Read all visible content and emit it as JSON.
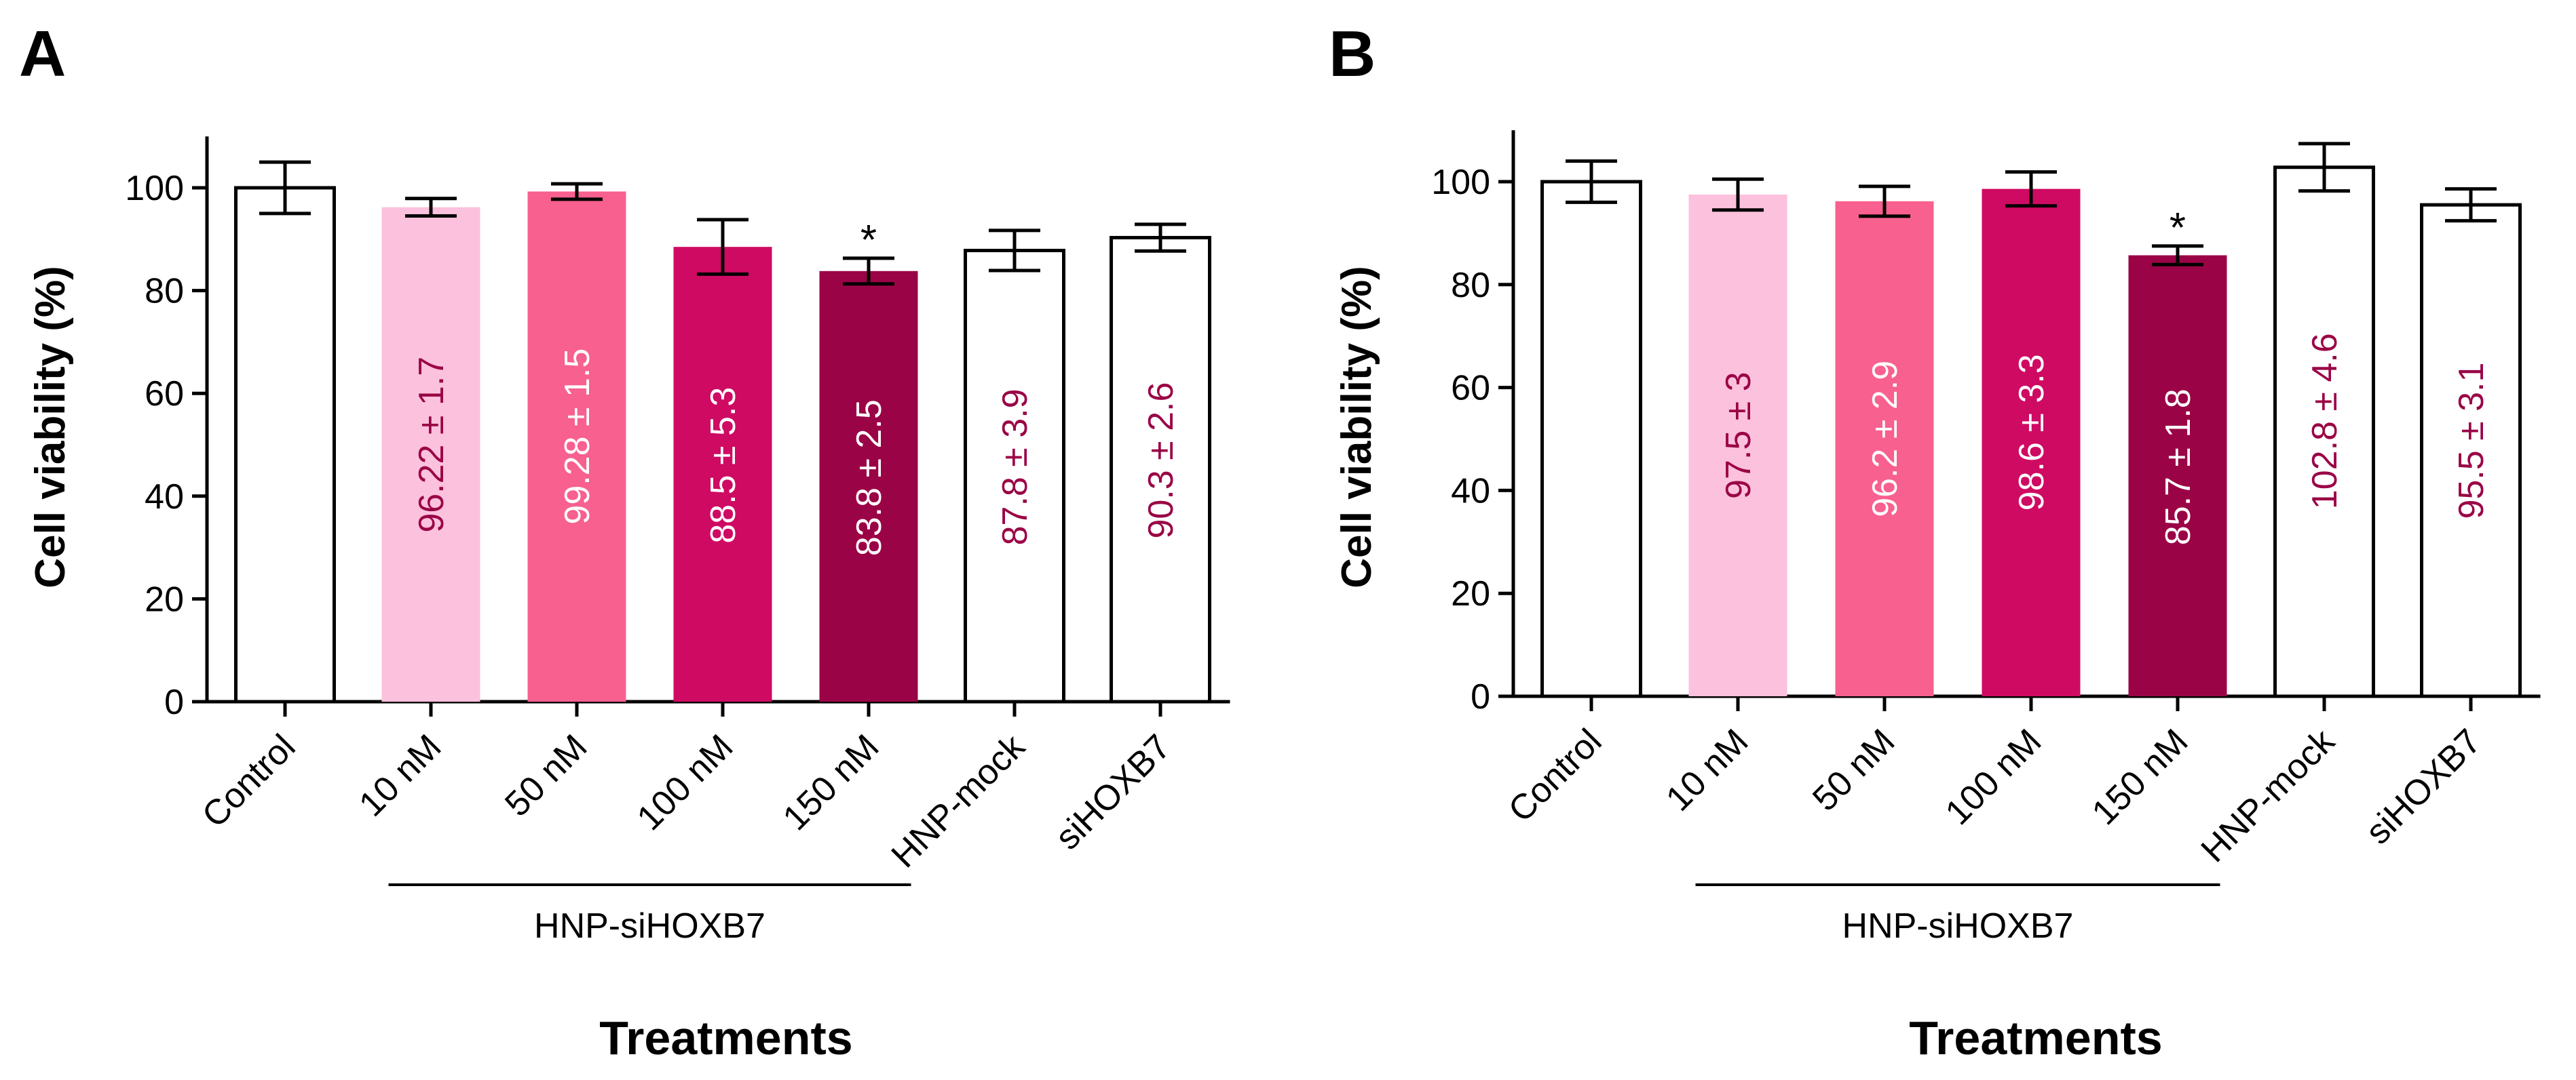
{
  "chart_data": [
    {
      "panel": "A",
      "type": "bar",
      "ylabel": "Cell viability (%)",
      "xlabel": "Treatments",
      "ylim": [
        0,
        110
      ],
      "yticks": [
        0,
        20,
        40,
        60,
        80,
        100
      ],
      "categories": [
        "Control",
        "10 nM",
        "50 nM",
        "100 nM",
        "150 nM",
        "HNP-mock",
        "siHOXB7"
      ],
      "values": [
        100,
        96.22,
        99.28,
        88.5,
        83.8,
        87.8,
        90.3
      ],
      "errors": [
        5,
        1.7,
        1.5,
        5.3,
        2.5,
        3.9,
        2.6
      ],
      "value_labels": [
        "",
        "96.22 ± 1.7",
        "99.28 ± 1.5",
        "88.5 ± 5.3",
        "83.8 ± 2.5",
        "87.8 ± 3.9",
        "90.3 ± 2.6"
      ],
      "significant": [
        false,
        false,
        false,
        false,
        true,
        false,
        false
      ],
      "significance_mark": "*",
      "bar_colors": [
        "#ffffff",
        "#fcc1dc",
        "#f7608f",
        "#cf0a63",
        "#9a0446",
        "#ffffff",
        "#ffffff"
      ],
      "label_colors": [
        "#9a0446",
        "#9a0446",
        "#ffffff",
        "#ffffff",
        "#ffffff",
        "#9a0446",
        "#9a0446"
      ],
      "group": {
        "label": "HNP-siHOXB7",
        "from": 1,
        "to": 4
      },
      "grid": false
    },
    {
      "panel": "B",
      "type": "bar",
      "ylabel": "Cell viability (%)",
      "xlabel": "Treatments",
      "ylim": [
        0,
        110
      ],
      "yticks": [
        0,
        20,
        40,
        60,
        80,
        100
      ],
      "categories": [
        "Control",
        "10 nM",
        "50 nM",
        "100 nM",
        "150 nM",
        "HNP-mock",
        "siHOXB7"
      ],
      "values": [
        100,
        97.5,
        96.2,
        98.6,
        85.7,
        102.8,
        95.5
      ],
      "errors": [
        4,
        3,
        2.9,
        3.3,
        1.8,
        4.6,
        3.1
      ],
      "value_labels": [
        "",
        "97.5 ± 3",
        "96.2 ± 2.9",
        "98.6 ± 3.3",
        "85.7 ± 1.8",
        "102.8 ± 4.6",
        "95.5 ± 3.1"
      ],
      "significant": [
        false,
        false,
        false,
        false,
        true,
        false,
        false
      ],
      "significance_mark": "*",
      "bar_colors": [
        "#ffffff",
        "#fcc1dc",
        "#f7608f",
        "#cf0a63",
        "#9a0446",
        "#ffffff",
        "#ffffff"
      ],
      "label_colors": [
        "#9a0446",
        "#9a0446",
        "#ffffff",
        "#ffffff",
        "#ffffff",
        "#9a0446",
        "#9a0446"
      ],
      "group": {
        "label": "HNP-siHOXB7",
        "from": 1,
        "to": 4
      },
      "grid": false
    }
  ]
}
